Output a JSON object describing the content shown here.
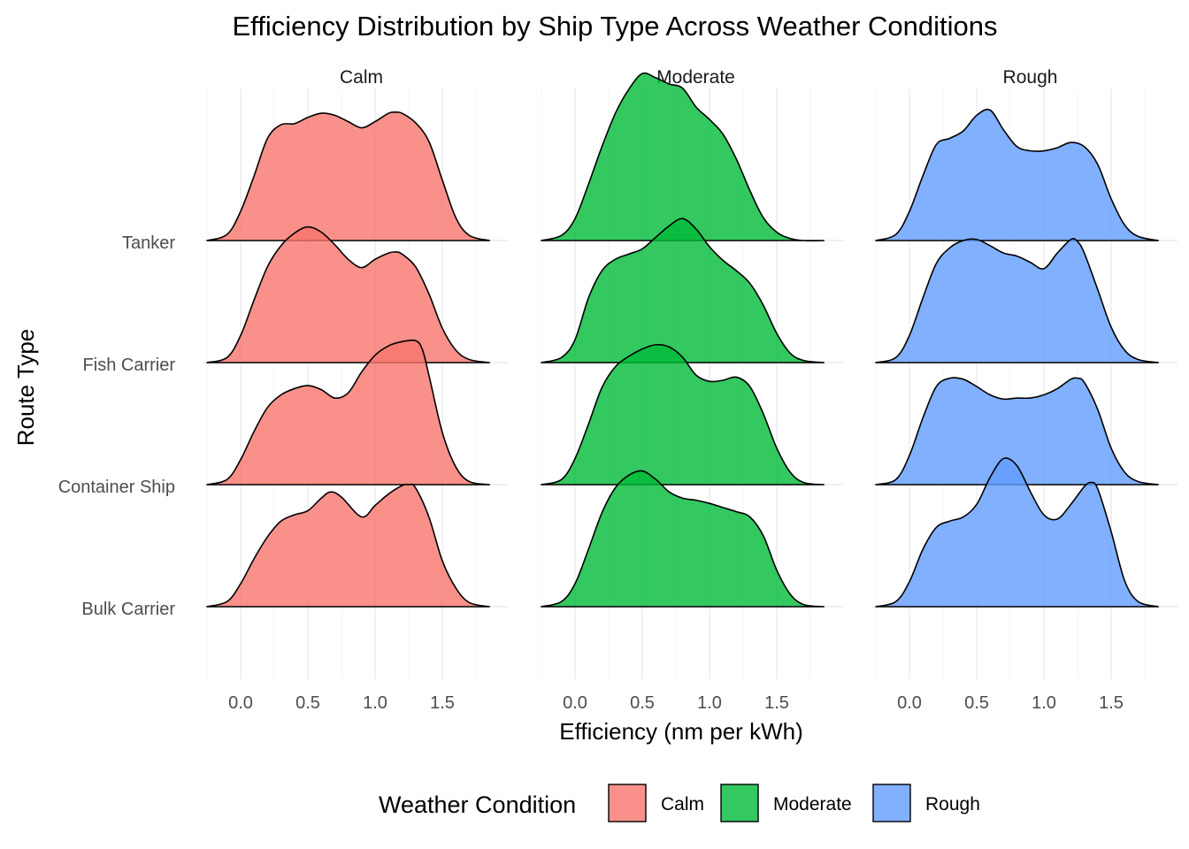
{
  "chart_data": {
    "type": "ridgeline",
    "title": "Efficiency Distribution by Ship Type Across Weather Conditions",
    "xlabel": "Efficiency (nm per kWh)",
    "ylabel": "Route Type",
    "x_ticks": [
      0.0,
      0.5,
      1.0,
      1.5
    ],
    "x_tick_labels": [
      "0.0",
      "0.5",
      "1.0",
      "1.5"
    ],
    "xlim": [
      -0.25,
      1.85
    ],
    "categories": [
      "Bulk Carrier",
      "Container Ship",
      "Fish Carrier",
      "Tanker"
    ],
    "legend": {
      "title": "Weather Condition",
      "position": "bottom",
      "items": [
        "Calm",
        "Moderate",
        "Rough"
      ]
    },
    "colors": {
      "Calm": "#F8766D",
      "Moderate": "#00BA38",
      "Rough": "#619CFF"
    },
    "grid": true,
    "panels": [
      {
        "name": "Calm",
        "color": "#F8766D",
        "ridges": [
          {
            "category": "Bulk Carrier",
            "x": [
              -0.25,
              -0.1,
              0.0,
              0.1,
              0.2,
              0.3,
              0.4,
              0.5,
              0.6,
              0.67,
              0.75,
              0.9,
              1.0,
              1.1,
              1.2,
              1.25,
              1.3,
              1.4,
              1.5,
              1.6,
              1.7,
              1.85
            ],
            "density": [
              0.0,
              0.05,
              0.22,
              0.46,
              0.67,
              0.82,
              0.88,
              0.92,
              1.04,
              1.1,
              1.05,
              0.86,
              0.97,
              1.08,
              1.16,
              1.17,
              1.14,
              0.86,
              0.44,
              0.18,
              0.04,
              0.0
            ]
          },
          {
            "category": "Container Ship",
            "x": [
              -0.25,
              -0.1,
              0.0,
              0.1,
              0.2,
              0.3,
              0.4,
              0.5,
              0.6,
              0.7,
              0.8,
              0.9,
              1.0,
              1.1,
              1.2,
              1.3,
              1.35,
              1.4,
              1.5,
              1.6,
              1.7,
              1.85
            ],
            "density": [
              0.0,
              0.05,
              0.24,
              0.51,
              0.74,
              0.86,
              0.92,
              0.95,
              0.91,
              0.83,
              0.88,
              1.08,
              1.24,
              1.33,
              1.37,
              1.38,
              1.3,
              1.05,
              0.5,
              0.17,
              0.03,
              0.0
            ]
          },
          {
            "category": "Fish Carrier",
            "x": [
              -0.25,
              -0.1,
              0.0,
              0.1,
              0.2,
              0.3,
              0.4,
              0.5,
              0.6,
              0.7,
              0.8,
              0.9,
              1.0,
              1.1,
              1.15,
              1.2,
              1.3,
              1.4,
              1.5,
              1.6,
              1.7,
              1.85
            ],
            "density": [
              0.0,
              0.05,
              0.26,
              0.6,
              0.92,
              1.12,
              1.24,
              1.3,
              1.25,
              1.13,
              0.99,
              0.91,
              0.99,
              1.05,
              1.06,
              1.04,
              0.92,
              0.66,
              0.33,
              0.12,
              0.03,
              0.0
            ]
          },
          {
            "category": "Tanker",
            "x": [
              -0.25,
              -0.1,
              0.0,
              0.1,
              0.2,
              0.3,
              0.4,
              0.5,
              0.6,
              0.7,
              0.8,
              0.9,
              1.0,
              1.1,
              1.15,
              1.2,
              1.3,
              1.4,
              1.5,
              1.6,
              1.7,
              1.85
            ],
            "density": [
              0.0,
              0.06,
              0.28,
              0.62,
              0.98,
              1.11,
              1.12,
              1.18,
              1.22,
              1.2,
              1.14,
              1.08,
              1.14,
              1.22,
              1.23,
              1.22,
              1.13,
              0.95,
              0.58,
              0.22,
              0.05,
              0.0
            ]
          }
        ]
      },
      {
        "name": "Moderate",
        "color": "#00BA38",
        "ridges": [
          {
            "category": "Bulk Carrier",
            "x": [
              -0.25,
              -0.1,
              0.0,
              0.1,
              0.2,
              0.3,
              0.4,
              0.5,
              0.6,
              0.7,
              0.8,
              0.9,
              1.0,
              1.1,
              1.2,
              1.3,
              1.4,
              1.5,
              1.6,
              1.7,
              1.85
            ],
            "density": [
              0.0,
              0.05,
              0.22,
              0.55,
              0.9,
              1.14,
              1.26,
              1.3,
              1.22,
              1.1,
              1.04,
              1.02,
              0.99,
              0.95,
              0.91,
              0.86,
              0.68,
              0.35,
              0.12,
              0.02,
              0.0
            ]
          },
          {
            "category": "Container Ship",
            "x": [
              -0.25,
              -0.1,
              0.0,
              0.1,
              0.2,
              0.3,
              0.4,
              0.5,
              0.6,
              0.7,
              0.8,
              0.9,
              1.0,
              1.1,
              1.2,
              1.3,
              1.4,
              1.5,
              1.6,
              1.7,
              1.85
            ],
            "density": [
              0.0,
              0.05,
              0.25,
              0.58,
              0.93,
              1.13,
              1.23,
              1.3,
              1.34,
              1.32,
              1.22,
              1.05,
              0.99,
              1.0,
              1.03,
              0.94,
              0.68,
              0.35,
              0.12,
              0.02,
              0.0
            ]
          },
          {
            "category": "Fish Carrier",
            "x": [
              -0.25,
              -0.1,
              0.0,
              0.1,
              0.2,
              0.3,
              0.4,
              0.5,
              0.6,
              0.7,
              0.8,
              0.9,
              1.0,
              1.1,
              1.2,
              1.3,
              1.4,
              1.5,
              1.6,
              1.7,
              1.85
            ],
            "density": [
              0.0,
              0.05,
              0.22,
              0.62,
              0.88,
              0.99,
              1.04,
              1.09,
              1.2,
              1.31,
              1.38,
              1.28,
              1.11,
              0.98,
              0.88,
              0.76,
              0.55,
              0.28,
              0.09,
              0.02,
              0.0
            ]
          },
          {
            "category": "Tanker",
            "x": [
              -0.25,
              -0.1,
              0.0,
              0.1,
              0.2,
              0.3,
              0.4,
              0.5,
              0.6,
              0.7,
              0.8,
              0.9,
              1.0,
              1.1,
              1.2,
              1.3,
              1.4,
              1.5,
              1.6,
              1.7,
              1.85
            ],
            "density": [
              0.0,
              0.05,
              0.21,
              0.54,
              0.9,
              1.22,
              1.45,
              1.6,
              1.56,
              1.5,
              1.46,
              1.28,
              1.16,
              1.02,
              0.78,
              0.48,
              0.22,
              0.08,
              0.02,
              0.0,
              0.0
            ]
          }
        ]
      },
      {
        "name": "Rough",
        "color": "#619CFF",
        "ridges": [
          {
            "category": "Bulk Carrier",
            "x": [
              -0.25,
              -0.1,
              0.0,
              0.1,
              0.2,
              0.3,
              0.4,
              0.5,
              0.6,
              0.7,
              0.8,
              0.9,
              1.0,
              1.1,
              1.2,
              1.3,
              1.35,
              1.4,
              1.5,
              1.6,
              1.7,
              1.85
            ],
            "density": [
              0.0,
              0.05,
              0.24,
              0.55,
              0.76,
              0.82,
              0.86,
              0.98,
              1.24,
              1.42,
              1.35,
              1.1,
              0.88,
              0.84,
              0.98,
              1.15,
              1.19,
              1.13,
              0.72,
              0.25,
              0.05,
              0.0
            ]
          },
          {
            "category": "Container Ship",
            "x": [
              -0.25,
              -0.1,
              0.0,
              0.1,
              0.2,
              0.3,
              0.4,
              0.5,
              0.6,
              0.7,
              0.8,
              0.9,
              1.0,
              1.1,
              1.2,
              1.25,
              1.3,
              1.4,
              1.5,
              1.6,
              1.7,
              1.85
            ],
            "density": [
              0.0,
              0.05,
              0.28,
              0.64,
              0.94,
              1.02,
              1.01,
              0.94,
              0.86,
              0.82,
              0.83,
              0.83,
              0.86,
              0.92,
              1.01,
              1.02,
              0.98,
              0.72,
              0.35,
              0.12,
              0.03,
              0.0
            ]
          },
          {
            "category": "Fish Carrier",
            "x": [
              -0.25,
              -0.1,
              0.0,
              0.1,
              0.2,
              0.3,
              0.4,
              0.5,
              0.6,
              0.7,
              0.8,
              0.9,
              1.0,
              1.1,
              1.2,
              1.25,
              1.3,
              1.4,
              1.5,
              1.6,
              1.7,
              1.85
            ],
            "density": [
              0.0,
              0.05,
              0.26,
              0.62,
              0.95,
              1.1,
              1.17,
              1.18,
              1.12,
              1.05,
              1.02,
              0.96,
              0.9,
              1.05,
              1.18,
              1.16,
              1.05,
              0.7,
              0.34,
              0.12,
              0.03,
              0.0
            ]
          },
          {
            "category": "Tanker",
            "x": [
              -0.25,
              -0.1,
              0.0,
              0.1,
              0.2,
              0.3,
              0.4,
              0.5,
              0.6,
              0.7,
              0.8,
              0.9,
              1.0,
              1.1,
              1.2,
              1.3,
              1.4,
              1.5,
              1.6,
              1.7,
              1.85
            ],
            "density": [
              0.0,
              0.06,
              0.28,
              0.62,
              0.92,
              0.98,
              1.05,
              1.2,
              1.25,
              1.06,
              0.9,
              0.86,
              0.86,
              0.89,
              0.94,
              0.9,
              0.73,
              0.4,
              0.15,
              0.04,
              0.0
            ]
          }
        ]
      }
    ]
  }
}
